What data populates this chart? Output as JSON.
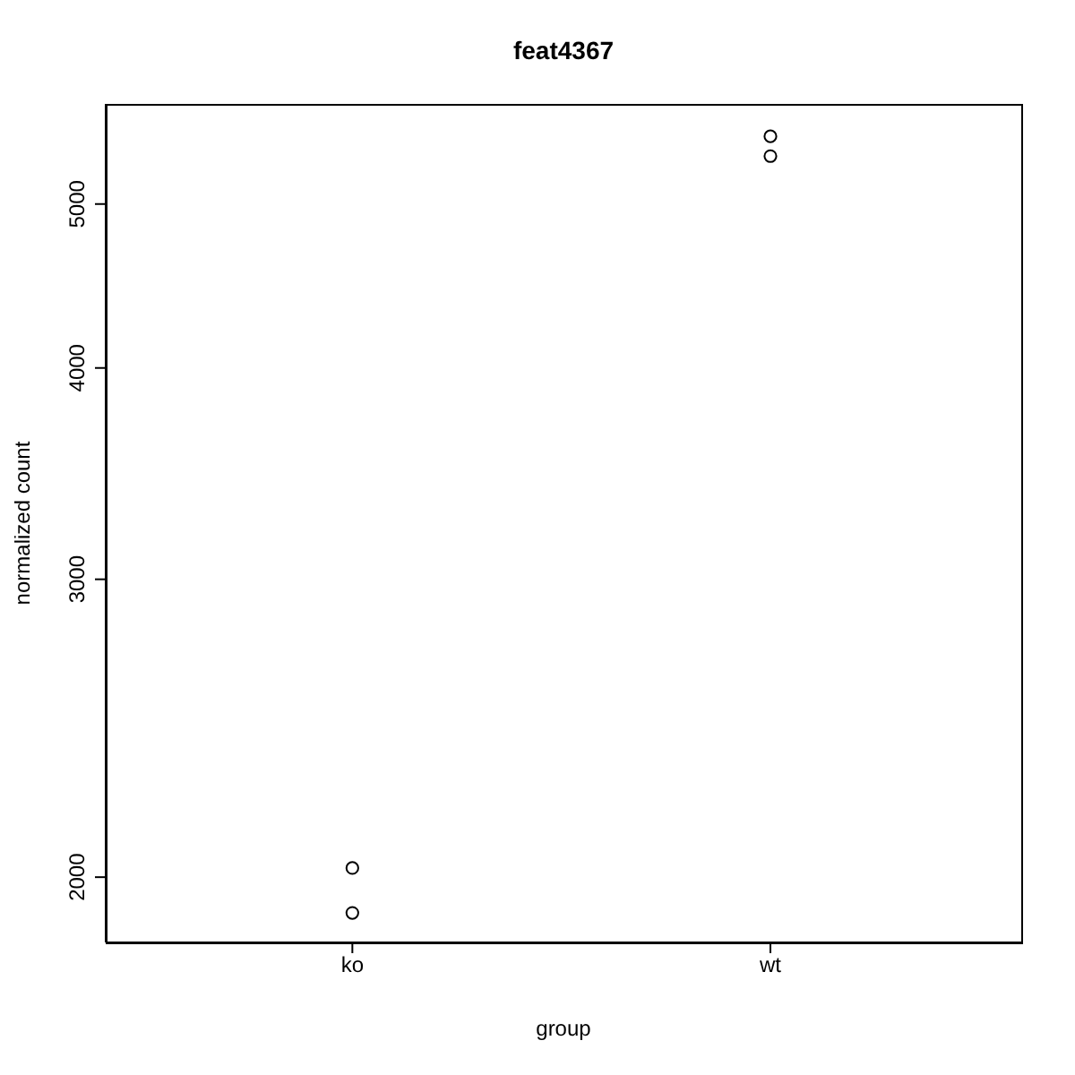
{
  "chart_data": {
    "type": "scatter",
    "title": "feat4367",
    "xlabel": "group",
    "ylabel": "normalized count",
    "categories": [
      "ko",
      "wt"
    ],
    "series": [
      {
        "color": "#000000",
        "values": [
          2025,
          5483
        ]
      },
      {
        "color": "#000000",
        "values": [
          1905,
          5337
        ]
      }
    ],
    "marker": "circle",
    "log": "y",
    "ylim": [
      1830,
      5730
    ],
    "yticks": [
      2000,
      3000,
      4000,
      5000
    ],
    "grid": false,
    "legend": false
  }
}
